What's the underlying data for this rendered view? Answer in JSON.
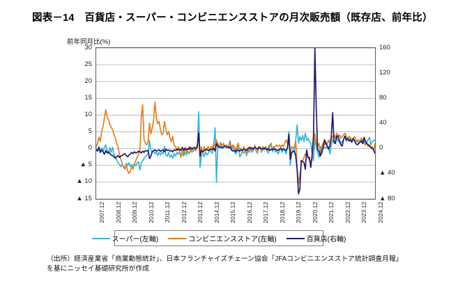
{
  "title": "図表－14　百貨店・スーパー・コンビニエンスストアの月次販売額（既存店、前年比）",
  "source": {
    "line1": "（出所）経済産業省「商業動態統計」、日本フランチャイズチェーン協会「JFAコンビニエンスストア統計調査月報」",
    "line2": "を基にニッセイ基礎研究所が作成"
  },
  "chart_data": {
    "type": "line",
    "axis_title": "前年同月比(%)",
    "negative_prefix": "▲",
    "x_start": "2007.12",
    "x_interval": "monthly",
    "points_per_tick": 12,
    "x_tick_labels": [
      "2007.12",
      "2008.12",
      "2009.12",
      "2010.12",
      "2011.12",
      "2012.12",
      "2013.12",
      "2014.12",
      "2015.12",
      "2016.12",
      "2017.12",
      "2018.12",
      "2019.12",
      "2020.12",
      "2021.12",
      "2022.12",
      "2023.12",
      "2024.12"
    ],
    "left_axis": {
      "max": 30,
      "min": -15,
      "ticks": [
        30,
        25,
        20,
        15,
        10,
        5,
        0,
        -5,
        -10,
        -15
      ]
    },
    "right_axis": {
      "max": 160,
      "min": -80,
      "ticks": [
        160,
        120,
        80,
        40,
        0,
        -40,
        -80
      ]
    },
    "grid": true,
    "legend_position": "bottom",
    "series": [
      {
        "id": "supermarket",
        "name": "スーパー(左軸)",
        "axis": "left",
        "color": "#35b5d9",
        "values": [
          0.3,
          -0.8,
          0.6,
          -1.2,
          0.2,
          -0.9,
          0.4,
          1.1,
          -0.6,
          -1.4,
          0.3,
          -1.1,
          0.4,
          -1.6,
          -2.6,
          -3.4,
          -4.2,
          -4.6,
          -5.4,
          -4.7,
          -5.3,
          -5.9,
          -4.4,
          -5.1,
          -4.2,
          -5.4,
          -4.7,
          -5.3,
          -4.5,
          -5.2,
          -4.3,
          -3.9,
          -6.4,
          -4.1,
          -3.7,
          -2.9,
          -2.4,
          -2.0,
          -1.4,
          2.4,
          -0.6,
          -1.1,
          -0.7,
          -1.6,
          -1.0,
          -2.1,
          -1.1,
          -1.9,
          -0.9,
          -1.6,
          0.6,
          -1.9,
          -2.3,
          -1.1,
          -2.6,
          -1.9,
          -2.9,
          -1.4,
          -2.3,
          -1.1,
          -1.7,
          -1.0,
          -2.1,
          -1.4,
          -2.2,
          -1.1,
          -1.9,
          -0.7,
          -1.6,
          -0.4,
          -1.1,
          -0.7,
          -0.1,
          -0.6,
          0.6,
          11.0,
          -5.6,
          -2.1,
          -1.4,
          -2.4,
          -0.9,
          -1.9,
          -1.4,
          -0.4,
          -0.9,
          -1.4,
          0.9,
          6.2,
          -10.1,
          1.6,
          0.4,
          1.9,
          0.3,
          1.4,
          0.9,
          1.1,
          0.6,
          1.1,
          2.4,
          -0.6,
          0.6,
          -0.4,
          -1.6,
          -0.9,
          1.6,
          -2.4,
          -1.9,
          -0.7,
          -1.4,
          -0.4,
          -2.1,
          -0.6,
          -1.1,
          0.1,
          -1.1,
          -0.4,
          1.1,
          -0.6,
          -1.4,
          0.6,
          0.1,
          -1.1,
          0.6,
          -0.4,
          0.1,
          -0.6,
          -1.4,
          1.1,
          1.6,
          -0.9,
          0.6,
          -1.1,
          -0.4,
          -1.6,
          -0.9,
          0.6,
          -1.1,
          0.1,
          -0.4,
          -1.6,
          0.6,
          5.1,
          -4.9,
          -1.4,
          -0.4,
          -0.6,
          2.6,
          7.1,
          1.6,
          3.6,
          2.4,
          3.9,
          2.1,
          4.6,
          2.4,
          3.1,
          2.1,
          1.6,
          -1.6,
          -3.6,
          3.1,
          0.6,
          -1.1,
          -2.6,
          0.6,
          -1.6,
          0.1,
          0.6,
          0.1,
          0.6,
          0.6,
          -1.6,
          1.1,
          2.6,
          1.6,
          2.1,
          3.6,
          2.1,
          2.6,
          1.6,
          2.1,
          2.6,
          3.6,
          2.1,
          3.1,
          2.6,
          3.4,
          2.1,
          3.1,
          2.4,
          2.1,
          2.6,
          1.6,
          2.1,
          3.1,
          1.6,
          2.6,
          1.1,
          2.1,
          2.6,
          3.4,
          1.1,
          2.1,
          2.4,
          2.6
        ]
      },
      {
        "id": "convenience",
        "name": "コンビニエンスストア(左軸)",
        "axis": "left",
        "color": "#e87d1e",
        "values": [
          0.6,
          1.6,
          3.4,
          2.1,
          5.1,
          6.6,
          9.1,
          11.6,
          9.4,
          8.6,
          7.1,
          6.4,
          5.6,
          4.4,
          3.1,
          1.6,
          0.4,
          -1.6,
          -3.1,
          -4.4,
          -5.6,
          -6.1,
          -4.9,
          -6.6,
          -7.4,
          -6.6,
          -5.4,
          -6.1,
          -4.6,
          -3.6,
          -2.6,
          -1.6,
          -0.6,
          9.4,
          13.1,
          2.6,
          1.6,
          1.1,
          2.1,
          7.6,
          4.4,
          6.1,
          8.6,
          13.9,
          9.1,
          7.4,
          8.1,
          5.6,
          4.1,
          4.6,
          8.1,
          5.6,
          4.1,
          5.1,
          3.1,
          2.1,
          3.6,
          1.1,
          0.6,
          -0.6,
          0.6,
          -1.1,
          -2.6,
          -0.6,
          -1.6,
          0.1,
          -1.1,
          -0.6,
          0.6,
          -0.9,
          0.2,
          -0.6,
          0.1,
          -0.6,
          1.6,
          4.1,
          -2.6,
          0.6,
          -1.6,
          0.6,
          -0.6,
          0.1,
          0.6,
          -0.6,
          0.6,
          0.1,
          1.6,
          0.6,
          2.6,
          1.1,
          0.6,
          1.6,
          0.9,
          1.6,
          0.6,
          1.1,
          0.6,
          0.6,
          2.1,
          0.1,
          1.1,
          0.6,
          -0.6,
          0.6,
          1.6,
          -0.6,
          0.1,
          -0.6,
          0.6,
          -0.6,
          -1.6,
          0.1,
          -0.6,
          0.6,
          -0.6,
          0.1,
          0.6,
          -0.6,
          -1.1,
          0.1,
          0.6,
          -0.6,
          0.6,
          0.1,
          0.6,
          -0.6,
          0.6,
          1.1,
          0.6,
          0.1,
          0.6,
          0.6,
          1.1,
          0.6,
          1.1,
          0.6,
          1.1,
          0.6,
          1.6,
          2.6,
          1.6,
          2.1,
          -1.6,
          0.6,
          0.1,
          0.6,
          2.1,
          -5.6,
          -10.4,
          -8.1,
          -4.6,
          -3.6,
          -2.6,
          -1.6,
          -2.1,
          -2.6,
          -3.6,
          -4.6,
          -2.6,
          0.6,
          4.6,
          1.6,
          0.6,
          1.6,
          -1.6,
          0.6,
          1.6,
          1.1,
          2.1,
          1.1,
          2.6,
          1.6,
          2.6,
          3.6,
          4.1,
          3.1,
          4.6,
          3.6,
          4.1,
          3.1,
          3.6,
          4.1,
          4.6,
          3.6,
          3.1,
          3.6,
          3.1,
          2.6,
          3.1,
          3.6,
          2.6,
          2.1,
          2.6,
          2.1,
          3.1,
          2.6,
          1.6,
          1.1,
          1.6,
          0.6,
          1.1,
          0.1,
          0.6,
          -0.6,
          1.6
        ]
      },
      {
        "id": "department",
        "name": "百貨店(右軸)",
        "axis": "right",
        "color": "#1b1b6e",
        "values": [
          -2,
          -4,
          2,
          -6,
          -2,
          -5,
          -9,
          -3,
          -7,
          -5,
          -8,
          -10,
          -11,
          -13,
          -15,
          -13,
          -11,
          -14,
          -12,
          -11,
          -9,
          -8,
          -11,
          -13,
          -10,
          -9,
          -6,
          -8,
          -5,
          -7,
          -6,
          -4,
          -5,
          -7,
          -4,
          -6,
          -3,
          -4,
          -3,
          -16,
          -12,
          -5,
          -3,
          -2,
          -4,
          -3,
          -2,
          -4,
          -3,
          -2,
          -5,
          -1,
          -3,
          -2,
          -4,
          -3,
          -5,
          -2,
          -3,
          -1,
          -2,
          -1,
          -3,
          2,
          -3,
          1,
          -2,
          0,
          -1,
          2,
          -1,
          1,
          2,
          0,
          3,
          25,
          -12,
          -3,
          -5,
          -3,
          -2,
          -1,
          -3,
          -2,
          -1,
          -2,
          1,
          -4,
          8,
          4,
          2,
          3,
          1,
          2,
          4,
          2,
          3,
          1,
          3,
          -2,
          -4,
          -3,
          -5,
          -2,
          -3,
          -4,
          -2,
          -3,
          -1,
          -1,
          -3,
          0,
          2,
          0,
          1,
          -1,
          2,
          1,
          -1,
          2,
          1,
          0,
          -1,
          1,
          0,
          -2,
          0,
          -3,
          -1,
          -2,
          0,
          -1,
          -2,
          -3,
          -1,
          0,
          -2,
          -1,
          -2,
          -3,
          2,
          23,
          -17,
          -6,
          -5,
          -4,
          -12,
          -33,
          -72,
          -65,
          -19,
          -20,
          -22,
          -33,
          -2,
          -14,
          -14,
          -30,
          -10,
          21,
          160,
          65,
          -2,
          -4,
          -12,
          -5,
          2,
          14,
          8,
          4,
          -1,
          4,
          19,
          57,
          11,
          8,
          20,
          20,
          12,
          6,
          4,
          15,
          20,
          14,
          16,
          12,
          14,
          10,
          16,
          12,
          8,
          6,
          8,
          10,
          12,
          8,
          18,
          12,
          8,
          6,
          4,
          2,
          0,
          -2,
          -8
        ]
      }
    ]
  }
}
